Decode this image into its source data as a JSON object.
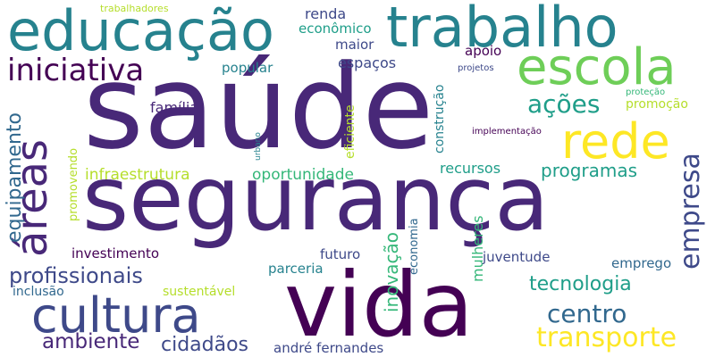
{
  "words": {
    "saude": "saúde",
    "seguranca": "segurança",
    "vida": "vida",
    "educacao": "educação",
    "trabalho": "trabalho",
    "escola": "escola",
    "rede": "rede",
    "areas": "áreas",
    "cultura": "cultura",
    "iniciativa": "iniciativa",
    "transporte": "transporte",
    "centro": "centro",
    "empresa": "empresa",
    "profissionais": "profissionais",
    "ambiente": "ambiente",
    "tecnologia": "tecnologia",
    "acoes": "ações",
    "programas": "programas",
    "cidadaos": "cidadãos",
    "equipamento": "equipamento",
    "infraestrutura": "infraestrutura",
    "oportunidade": "oportunidade",
    "inovacao": "inovação",
    "familia": "família",
    "investimento": "investimento",
    "andre_fernandes": "andré fernandes",
    "renda": "renda",
    "economico": "econômico",
    "maior": "maior",
    "espacos": "espaços",
    "popular": "popular",
    "apoio": "apoio",
    "recursos": "recursos",
    "juventude": "juventude",
    "emprego": "emprego",
    "parceria": "parceria",
    "futuro": "futuro",
    "inclusao": "inclusão",
    "sustentavel": "sustentável",
    "promocao": "promoção",
    "mulheres": "mulheres",
    "economia": "economia",
    "construcao": "construção",
    "eficiente": "eficiente",
    "promovendo": "promovendo",
    "implementacao": "implementação",
    "protecao": "proteção",
    "projetos": "projetos",
    "urbano": "urbano",
    "trabalhadores": "trabalhadores"
  },
  "colors": {
    "dark_purple": "#440154",
    "purple": "#482878",
    "indigo": "#3e4989",
    "blue": "#31688e",
    "teal_blue": "#26828e",
    "teal": "#1f9e89",
    "green": "#35b779",
    "light_green": "#6ece58",
    "lime": "#b5de2b",
    "yellow": "#fde725"
  }
}
